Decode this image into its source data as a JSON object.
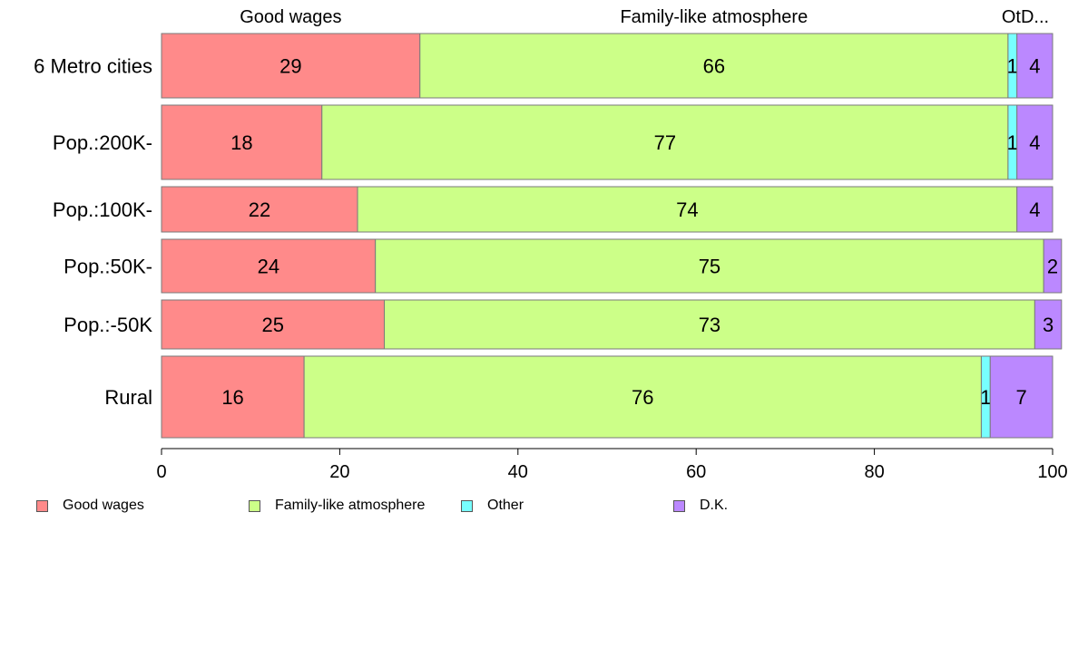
{
  "chart_data": {
    "type": "bar",
    "orientation": "horizontal",
    "stacked": true,
    "categories": [
      "6 Metro cities",
      "Pop.:200K-",
      "Pop.:100K-",
      "Pop.:50K-",
      "Pop.:-50K",
      "Rural"
    ],
    "series": [
      {
        "name": "Good wages",
        "color": "#FF8A8A",
        "values": [
          29,
          18,
          22,
          24,
          25,
          16
        ]
      },
      {
        "name": "Family-like atmosphere",
        "color": "#CCFF88",
        "values": [
          66,
          77,
          74,
          75,
          73,
          76
        ]
      },
      {
        "name": "Other",
        "color": "#77FFFF",
        "values": [
          1,
          1,
          0,
          0,
          0,
          1
        ]
      },
      {
        "name": "D.K.",
        "color": "#BB88FF",
        "values": [
          4,
          4,
          4,
          2,
          3,
          7
        ]
      }
    ],
    "data_label_text": [
      [
        "29",
        "66",
        "1",
        "4"
      ],
      [
        "18",
        "77",
        "1",
        "4"
      ],
      [
        "22",
        "74",
        "",
        "4"
      ],
      [
        "24",
        "75",
        "",
        "2"
      ],
      [
        "25",
        "73",
        "",
        "3"
      ],
      [
        "16",
        "76",
        "1",
        "7"
      ]
    ],
    "top_labels": [
      "Good wages",
      "Family-like atmosphere",
      "OtD..."
    ],
    "xlim": [
      0,
      100
    ],
    "xticks": [
      0,
      20,
      40,
      60,
      80,
      100
    ],
    "legend_position": "bottom-left",
    "grid": false
  }
}
